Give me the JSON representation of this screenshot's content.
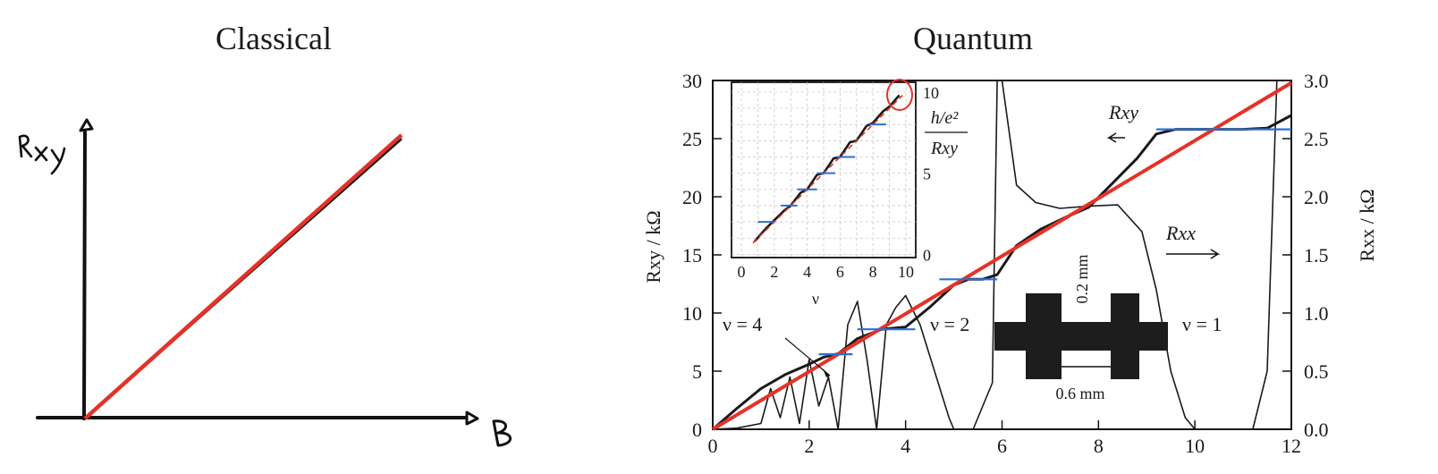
{
  "panels": {
    "classical": {
      "title": "Classical",
      "ylabel": "Rxy",
      "xlabel": "B"
    },
    "quantum": {
      "title": "Quantum"
    }
  },
  "colors": {
    "fit_line": "#e53228",
    "plateau_marker": "#2a6fd6",
    "curve": "#1a1a1a"
  },
  "chart_data": [
    {
      "type": "line",
      "title": "Classical",
      "xlabel": "B",
      "ylabel": "Rxy",
      "x": [
        0,
        1
      ],
      "series": [
        {
          "values": [
            0,
            1
          ]
        }
      ],
      "grid": false,
      "note": "hand-drawn axes, ticks unlabeled"
    },
    {
      "type": "line",
      "title": "Quantum",
      "xlabel": "",
      "ylabel": "Rxy / kΩ",
      "y2label": "Rxx / kΩ",
      "xlim": [
        0,
        12
      ],
      "ylim": [
        0,
        30
      ],
      "y2lim": [
        0,
        3.0
      ],
      "xticks": [
        "0",
        "2",
        "4",
        "6",
        "8",
        "10",
        "12"
      ],
      "yticks": [
        "0",
        "5",
        "10",
        "15",
        "20",
        "25",
        "30"
      ],
      "y2ticks": [
        "0.0",
        "0.5",
        "1.0",
        "1.5",
        "2.0",
        "2.5",
        "3.0"
      ],
      "series": [
        {
          "name": "Rxy",
          "x": [
            0,
            0.5,
            1.0,
            1.5,
            2.0,
            2.3,
            2.6,
            3.0,
            3.5,
            4.0,
            4.5,
            5.0,
            5.3,
            5.6,
            5.9,
            6.3,
            6.8,
            7.3,
            7.8,
            8.3,
            8.8,
            9.2,
            9.6,
            10.0,
            10.5,
            11.0,
            11.5,
            12.0
          ],
          "values": [
            0,
            1.8,
            3.5,
            4.7,
            5.6,
            6.2,
            6.5,
            7.8,
            8.6,
            8.8,
            10.5,
            12.4,
            12.9,
            12.9,
            13.3,
            15.8,
            17.2,
            18.2,
            19.1,
            21.2,
            23.3,
            25.4,
            25.8,
            25.8,
            25.8,
            25.8,
            25.9,
            27.0
          ]
        },
        {
          "name": "Rxx",
          "x": [
            0,
            0.5,
            1.0,
            1.2,
            1.4,
            1.6,
            1.8,
            2.0,
            2.2,
            2.4,
            2.6,
            2.8,
            3.0,
            3.2,
            3.4,
            3.6,
            3.8,
            4.0,
            4.3,
            4.6,
            4.9,
            5.0,
            5.4,
            5.8,
            5.9,
            6.0,
            6.3,
            6.7,
            7.2,
            7.8,
            8.4,
            8.9,
            9.2,
            9.5,
            9.8,
            10.0,
            10.4,
            10.8,
            11.2,
            11.5,
            11.7,
            12.0
          ],
          "values": [
            0.0,
            0.01,
            0.05,
            0.35,
            0.1,
            0.45,
            0.05,
            0.6,
            0.2,
            0.45,
            0.0,
            0.9,
            1.1,
            0.6,
            0.0,
            0.9,
            1.05,
            1.15,
            0.9,
            0.5,
            0.1,
            0.0,
            0.0,
            0.4,
            3.0,
            3.0,
            2.1,
            1.95,
            1.9,
            1.92,
            1.93,
            1.7,
            1.2,
            0.5,
            0.1,
            0.0,
            0.0,
            0.0,
            0.0,
            0.5,
            3.0,
            3.0
          ]
        },
        {
          "name": "",
          "type": "line",
          "x": [
            0,
            12
          ],
          "values": [
            0,
            29.8
          ]
        }
      ],
      "plateaus": [
        {
          "x": [
            2.2,
            2.9
          ],
          "y": 6.45
        },
        {
          "x": [
            3.0,
            4.2
          ],
          "y": 8.6
        },
        {
          "x": [
            4.7,
            5.9
          ],
          "y": 12.9
        },
        {
          "x": [
            9.2,
            12.0
          ],
          "y": 25.8
        }
      ],
      "annotations": [
        "ν = 4",
        "ν = 2",
        "ν = 1",
        "0.2 mm",
        "0.6 mm"
      ],
      "labels": {
        "rxy_arrow": "Rxy",
        "rxx_arrow": "Rxx"
      },
      "inset": {
        "type": "line",
        "xlabel": "ν",
        "ylabel": "h/e²\nRxy",
        "ylabel_lines": [
          "h/e²",
          "Rxy"
        ],
        "xlim": [
          0,
          10
        ],
        "ylim": [
          0,
          10
        ],
        "xticks": [
          "0",
          "2",
          "4",
          "6",
          "8",
          "10"
        ],
        "yticks": [
          "0",
          "5",
          "10"
        ],
        "series": [
          {
            "x": [
              0.8,
              1.5,
              2.0,
              2.6,
              3.0,
              3.6,
              4.0,
              4.6,
              5.0,
              5.6,
              6.0,
              6.6,
              7.0,
              7.6,
              8.0,
              8.6,
              9.0,
              9.6
            ],
            "values": [
              0.8,
              1.6,
              2.1,
              2.7,
              3.0,
              3.8,
              4.0,
              4.9,
              5.0,
              5.9,
              6.0,
              6.9,
              7.0,
              7.9,
              8.1,
              8.8,
              9.1,
              9.8
            ]
          }
        ],
        "plateaus": [
          {
            "x": [
              1.0,
              2.0
            ],
            "y": 2.0
          },
          {
            "x": [
              2.4,
              3.4
            ],
            "y": 3.0
          },
          {
            "x": [
              3.4,
              4.6
            ],
            "y": 4.0
          },
          {
            "x": [
              4.6,
              5.7
            ],
            "y": 5.0
          },
          {
            "x": [
              5.8,
              6.9
            ],
            "y": 6.0
          },
          {
            "x": [
              7.8,
              8.8
            ],
            "y": 8.0
          }
        ],
        "grid": true
      }
    }
  ]
}
